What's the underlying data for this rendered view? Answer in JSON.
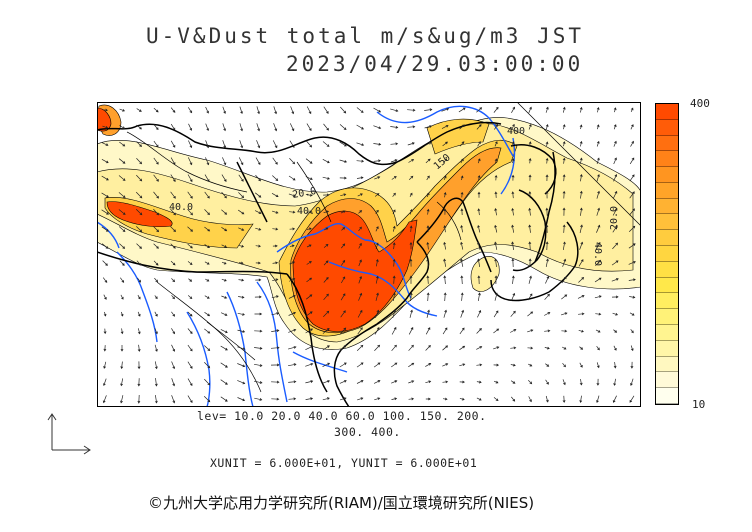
{
  "title": {
    "line1": "U-V&Dust total m/s&ug/m3 JST",
    "line2": "2023/04/29.03:00:00"
  },
  "contour_labels": [
    "20.0",
    "40.0",
    "40.0",
    "150",
    "400",
    "40.0",
    "20.0"
  ],
  "levels": {
    "line1": "lev= 10.0 20.0 40.0 60.0 100. 150. 200.",
    "line2": "300. 400."
  },
  "units_text": "XUNIT = 6.000E+01, YUNIT = 6.000E+01",
  "colorbar": {
    "max_label": "400",
    "min_label": "10",
    "colors": [
      "#ff4a00",
      "#ff5c08",
      "#ff6f10",
      "#ff8218",
      "#ff9520",
      "#ffa428",
      "#ffb232",
      "#ffc03a",
      "#ffcc3e",
      "#ffd640",
      "#ffe044",
      "#ffe84a",
      "#ffee60",
      "#fff278",
      "#fff490",
      "#fff6a8",
      "#fff8c0",
      "#fffad8",
      "#ffffee"
    ]
  },
  "map_colors": {
    "coast": "#000000",
    "rivers": "#1a5cff",
    "arrows": "#222222",
    "dust_high": "#ff4a00",
    "dust_mid": "#ffc83c",
    "dust_low": "#fff8c8"
  },
  "copyright": "©九州大学応用力学研究所(RIAM)/国立環境研究所(NIES)"
}
